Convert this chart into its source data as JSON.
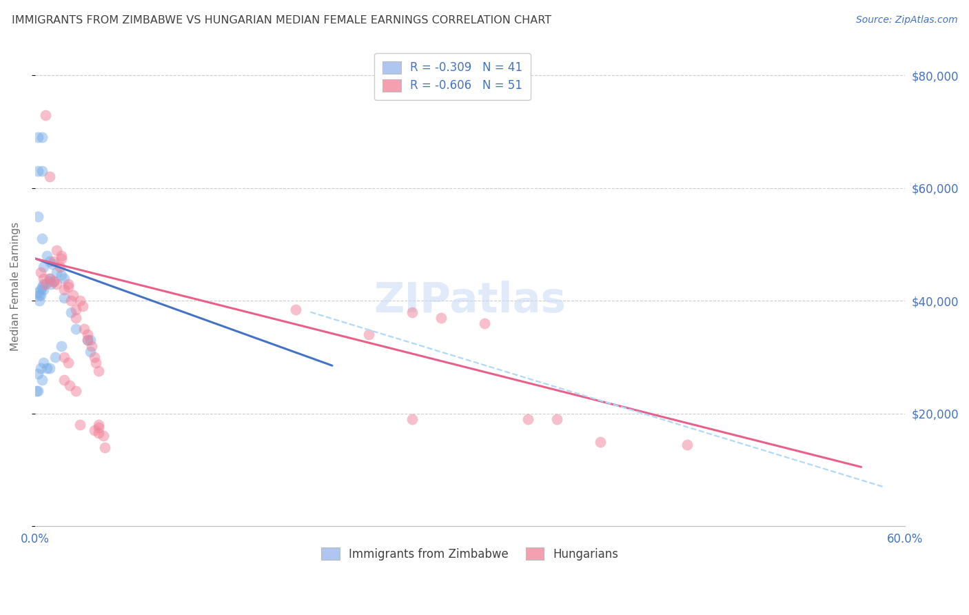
{
  "title": "IMMIGRANTS FROM ZIMBABWE VS HUNGARIAN MEDIAN FEMALE EARNINGS CORRELATION CHART",
  "source": "Source: ZipAtlas.com",
  "ylabel": "Median Female Earnings",
  "xlim": [
    0.0,
    0.6
  ],
  "ylim": [
    0,
    85000
  ],
  "yticks": [
    0,
    20000,
    40000,
    60000,
    80000
  ],
  "ytick_labels": [
    "",
    "$20,000",
    "$40,000",
    "$60,000",
    "$80,000"
  ],
  "xticks": [
    0.0,
    0.1,
    0.2,
    0.3,
    0.4,
    0.5,
    0.6
  ],
  "xtick_labels": [
    "0.0%",
    "",
    "",
    "",
    "",
    "",
    "60.0%"
  ],
  "blue_scatter_x": [
    0.002,
    0.005,
    0.002,
    0.005,
    0.002,
    0.005,
    0.008,
    0.01,
    0.012,
    0.006,
    0.015,
    0.018,
    0.02,
    0.01,
    0.013,
    0.011,
    0.006,
    0.005,
    0.004,
    0.002,
    0.003,
    0.02,
    0.025,
    0.028,
    0.038,
    0.018,
    0.014,
    0.006,
    0.01,
    0.008,
    0.004,
    0.002,
    0.005,
    0.001,
    0.002,
    0.036,
    0.038,
    0.01,
    0.006,
    0.004,
    0.003
  ],
  "blue_scatter_y": [
    69000,
    69000,
    63000,
    63000,
    55000,
    51000,
    48000,
    47000,
    46500,
    46000,
    45000,
    44500,
    44000,
    44000,
    43500,
    43000,
    43000,
    42500,
    42000,
    41500,
    41000,
    40500,
    38000,
    35000,
    33000,
    32000,
    30000,
    29000,
    28000,
    28000,
    28000,
    27000,
    26000,
    24000,
    24000,
    33000,
    31000,
    43500,
    42000,
    41000,
    40000
  ],
  "pink_scatter_x": [
    0.004,
    0.006,
    0.007,
    0.01,
    0.013,
    0.015,
    0.013,
    0.017,
    0.018,
    0.02,
    0.023,
    0.023,
    0.025,
    0.026,
    0.028,
    0.028,
    0.031,
    0.033,
    0.034,
    0.036,
    0.036,
    0.039,
    0.041,
    0.042,
    0.044,
    0.044,
    0.047,
    0.26,
    0.28,
    0.31,
    0.34,
    0.36,
    0.39,
    0.007,
    0.01,
    0.015,
    0.018,
    0.02,
    0.023,
    0.02,
    0.024,
    0.028,
    0.031,
    0.041,
    0.044,
    0.048,
    0.044,
    0.18,
    0.23,
    0.26,
    0.45
  ],
  "pink_scatter_y": [
    45000,
    44000,
    43000,
    44000,
    43500,
    43000,
    47000,
    46000,
    47500,
    42000,
    43000,
    42500,
    40000,
    41000,
    38500,
    37000,
    40000,
    39000,
    35000,
    34000,
    33000,
    32000,
    30000,
    29000,
    18000,
    17500,
    16000,
    38000,
    37000,
    36000,
    19000,
    19000,
    15000,
    73000,
    62000,
    49000,
    48000,
    30000,
    29000,
    26000,
    25000,
    24000,
    18000,
    17000,
    16500,
    14000,
    27500,
    38500,
    34000,
    19000,
    14500
  ],
  "blue_line_x": [
    0.0,
    0.205
  ],
  "blue_line_y": [
    47500,
    28500
  ],
  "pink_line_x": [
    0.0,
    0.57
  ],
  "pink_line_y": [
    47500,
    10500
  ],
  "dashed_line_x": [
    0.19,
    0.585
  ],
  "dashed_line_y": [
    38000,
    7000
  ],
  "grid_color": "#cccccc",
  "bg_color": "#ffffff",
  "title_color": "#404040",
  "source_color": "#4472c4",
  "axis_label_color": "#707070",
  "tick_label_color": "#4472c4",
  "blue_scatter_color": "#7baee8",
  "pink_scatter_color": "#f08098",
  "blue_line_color": "#4472c4",
  "pink_line_color": "#e8608a",
  "dashed_color": "#b0d8f8",
  "legend_blue_fill": "#aec6f0",
  "legend_pink_fill": "#f4a0b0"
}
